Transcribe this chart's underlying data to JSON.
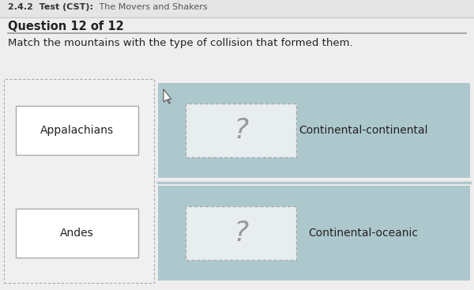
{
  "title_bold": "2.4.2  Test (CST):",
  "title_normal": " The Movers and Shakers",
  "question_label": "Question 12 of 12",
  "instruction": "Match the mountains with the type of collision that formed them.",
  "left_items": [
    "Appalachians",
    "Andes"
  ],
  "right_items": [
    "Continental-continental",
    "Continental-oceanic"
  ],
  "question_mark": "?",
  "bg_color": "#eeeeee",
  "panel_bg": "#adc8cc",
  "white_box_color": "#ffffff",
  "header_bg": "#e8e8e8",
  "text_color": "#222222",
  "title_color": "#555555",
  "q_mark_color": "#999999",
  "separator_color": "#cccccc",
  "left_box_border": "#aaaaaa",
  "dashed_border_color": "#aaaaaa",
  "fig_width": 6.0,
  "fig_height": 3.67
}
